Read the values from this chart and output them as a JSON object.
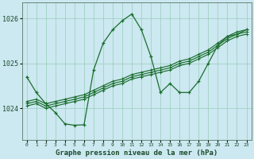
{
  "title": "Graphe pression niveau de la mer (hPa)",
  "bg_color": "#cce8f0",
  "grid_color": "#99ccbb",
  "line_color": "#1a6e2e",
  "x_labels": [
    "0",
    "1",
    "2",
    "3",
    "4",
    "5",
    "6",
    "7",
    "8",
    "9",
    "10",
    "11",
    "12",
    "13",
    "14",
    "15",
    "16",
    "17",
    "18",
    "19",
    "20",
    "21",
    "22",
    "23"
  ],
  "ylim": [
    1023.3,
    1026.35
  ],
  "yticks": [
    1024,
    1025,
    1026
  ],
  "ytick_label_top": "1026",
  "linear_series": [
    [
      1024.15,
      1024.2,
      1024.1,
      1024.15,
      1024.2,
      1024.25,
      1024.3,
      1024.4,
      1024.5,
      1024.6,
      1024.65,
      1024.75,
      1024.8,
      1024.85,
      1024.9,
      1024.95,
      1025.05,
      1025.1,
      1025.2,
      1025.3,
      1025.45,
      1025.6,
      1025.7,
      1025.75
    ],
    [
      1024.1,
      1024.15,
      1024.05,
      1024.1,
      1024.15,
      1024.2,
      1024.25,
      1024.35,
      1024.45,
      1024.55,
      1024.6,
      1024.7,
      1024.75,
      1024.8,
      1024.85,
      1024.9,
      1025.0,
      1025.05,
      1025.15,
      1025.25,
      1025.4,
      1025.55,
      1025.65,
      1025.7
    ],
    [
      1024.05,
      1024.1,
      1024.0,
      1024.05,
      1024.1,
      1024.15,
      1024.2,
      1024.3,
      1024.4,
      1024.5,
      1024.55,
      1024.65,
      1024.7,
      1024.75,
      1024.8,
      1024.85,
      1024.95,
      1025.0,
      1025.1,
      1025.2,
      1025.35,
      1025.5,
      1025.6,
      1025.65
    ]
  ],
  "spiky_series": [
    1024.7,
    1024.35,
    1024.1,
    1023.9,
    1023.65,
    1023.62,
    1023.63,
    1024.85,
    1025.45,
    1025.75,
    1025.95,
    1026.1,
    1025.75,
    1025.15,
    1024.35,
    1024.55,
    1024.35,
    1024.35,
    1024.6,
    1025.0,
    1025.4,
    1025.6,
    1025.65,
    1025.75
  ],
  "marker": "+"
}
